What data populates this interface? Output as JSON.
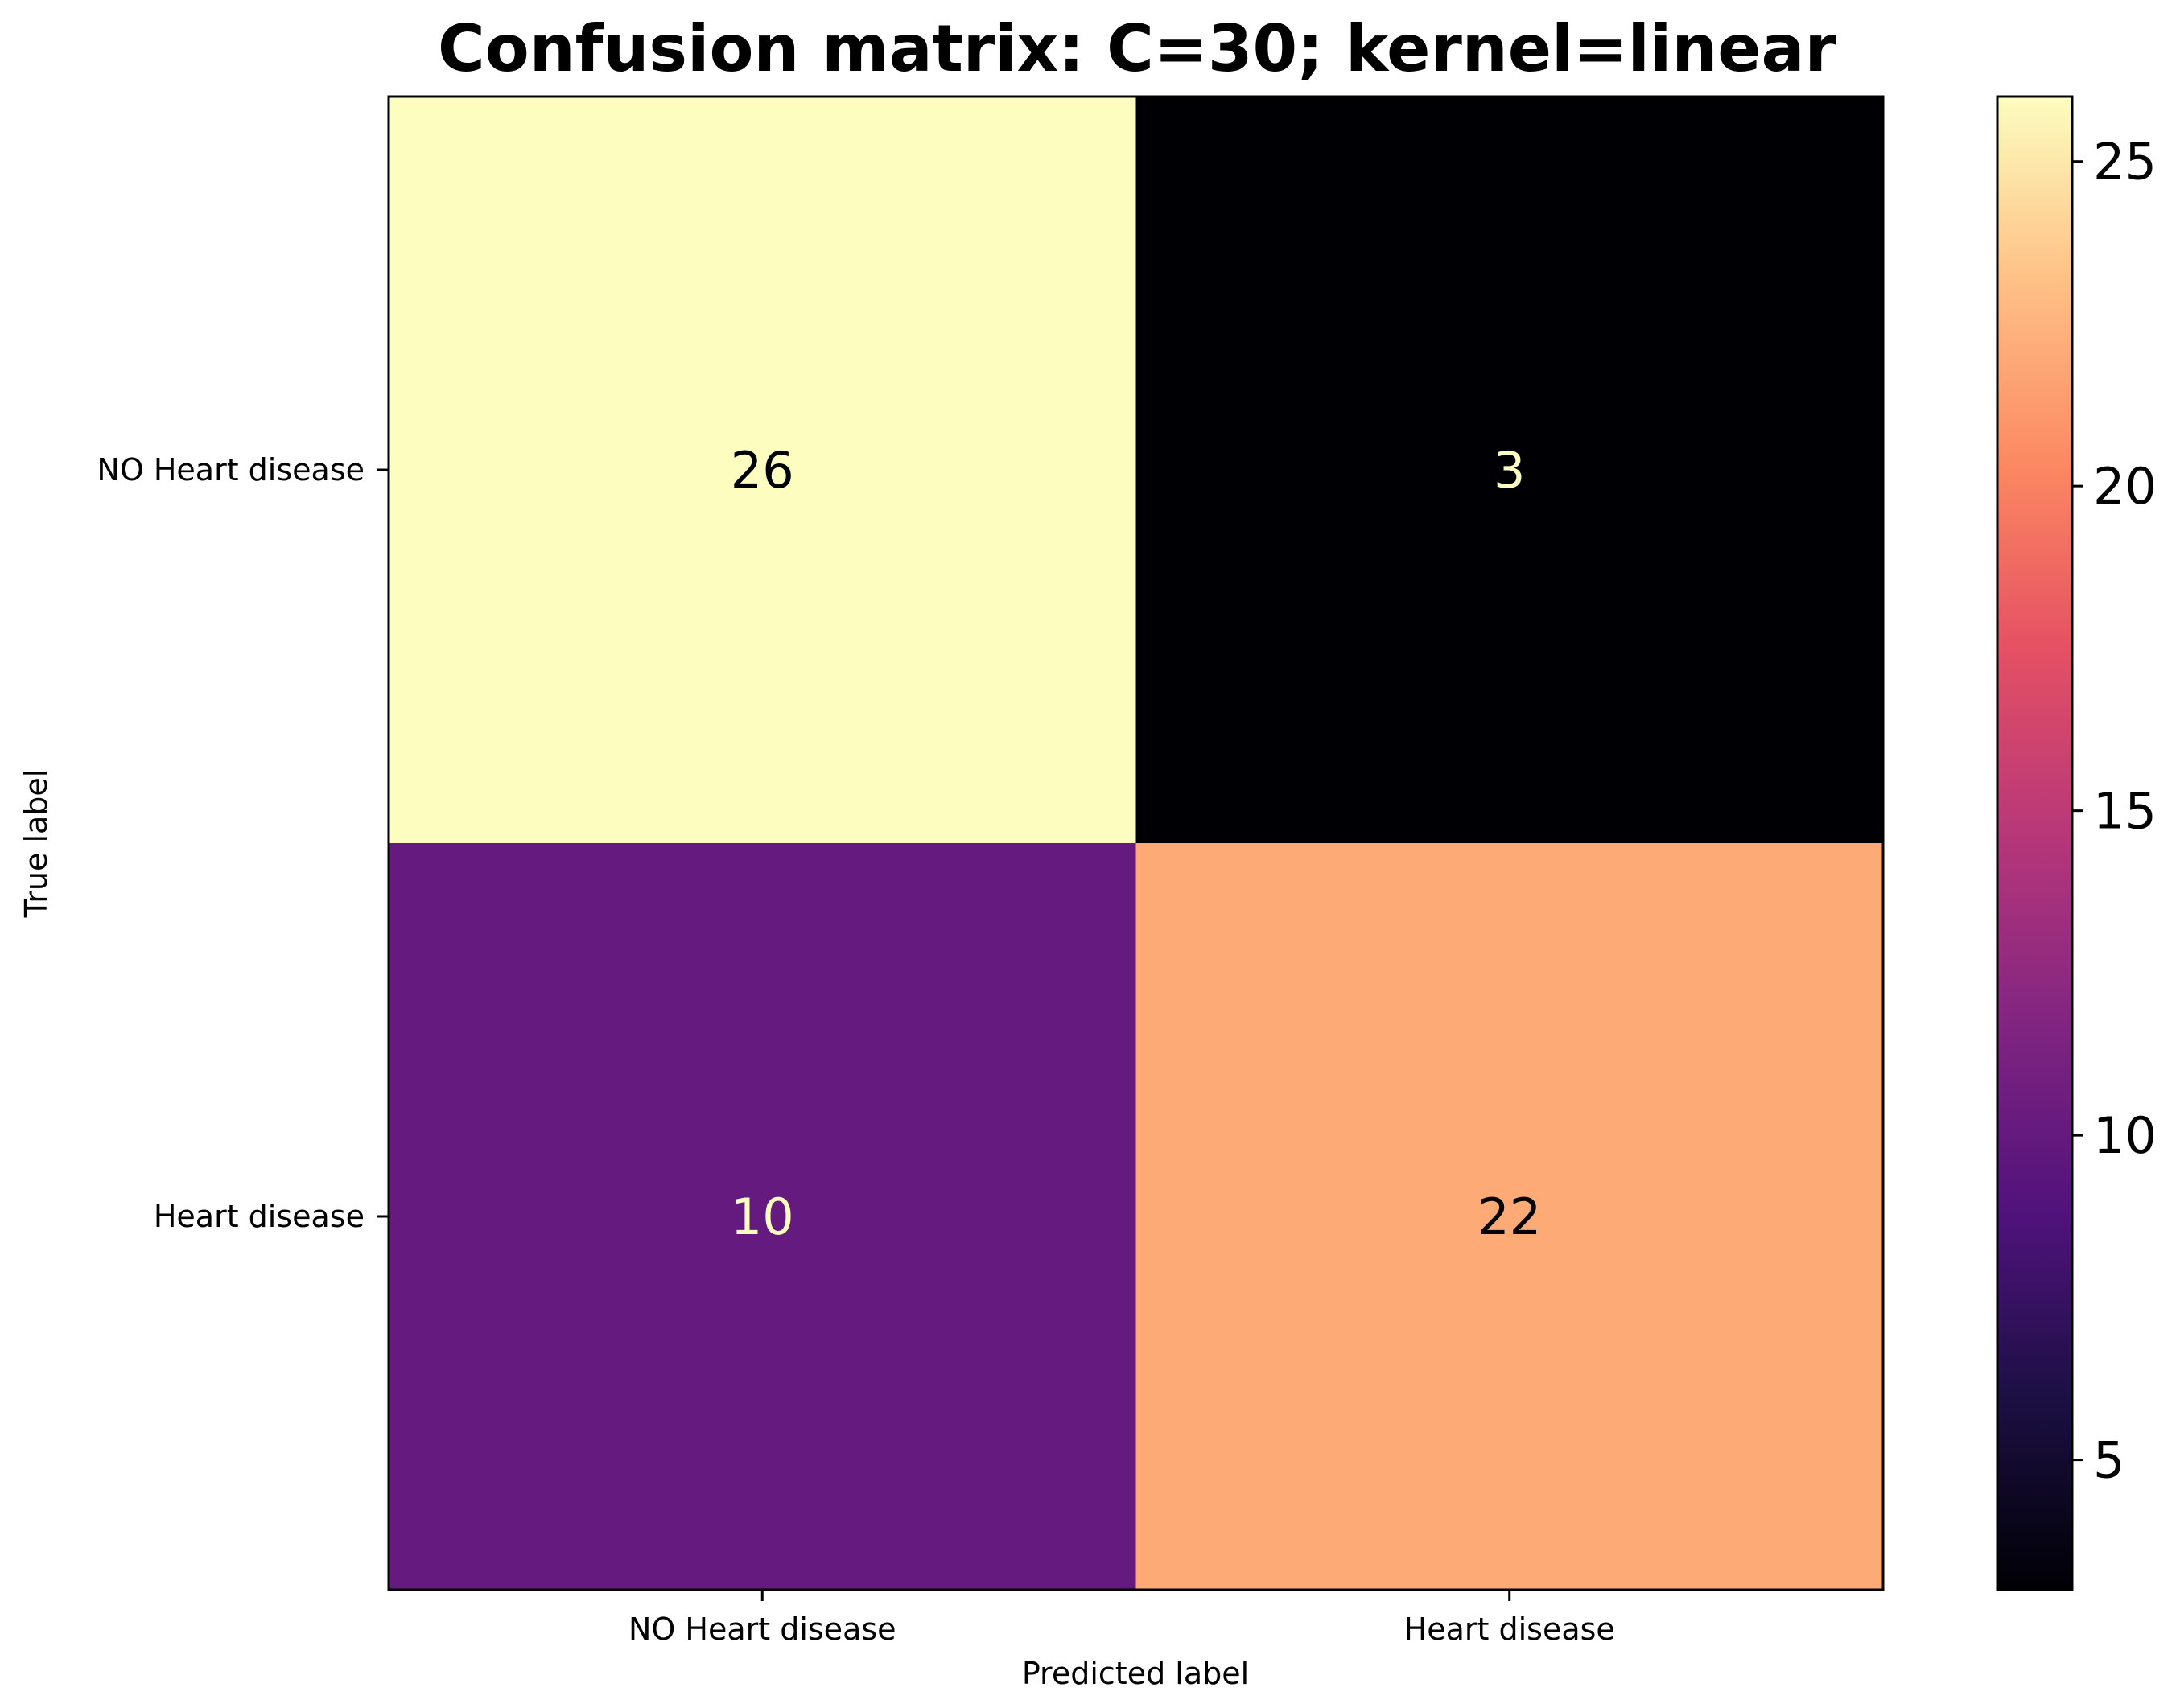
{
  "chart_data": {
    "type": "heatmap",
    "title": "Confusion matrix: C=30; kernel=linear",
    "xlabel": "Predicted label",
    "ylabel": "True label",
    "x_categories": [
      "NO Heart disease",
      "Heart disease"
    ],
    "y_categories": [
      "NO Heart disease",
      "Heart disease"
    ],
    "matrix": [
      [
        26,
        3
      ],
      [
        10,
        22
      ]
    ],
    "colormap": "magma",
    "colorbar": {
      "range": [
        3,
        26
      ],
      "ticks": [
        5,
        10,
        15,
        20,
        25
      ],
      "tick_labels": [
        "5",
        "10",
        "15",
        "20",
        "25"
      ]
    },
    "grid": false,
    "legend": "none"
  }
}
